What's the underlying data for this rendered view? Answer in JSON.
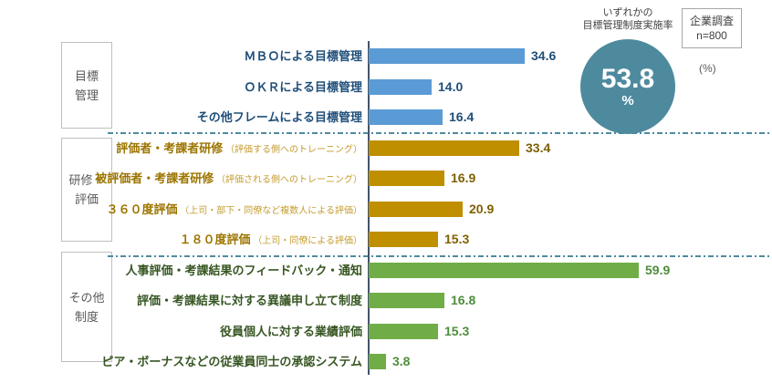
{
  "survey_box": {
    "text": "企業調査\nn=800"
  },
  "unit_label": "(%)",
  "highlight": {
    "title": "いずれかの\n目標管理制度実施率",
    "value": "53.8",
    "unit": "%",
    "circle_color": "#4E8A9E"
  },
  "categories": [
    {
      "label": "目標\n管理"
    },
    {
      "label": "研修・\n評価"
    },
    {
      "label": "その他\n制度"
    }
  ],
  "chart_data": {
    "type": "bar",
    "orientation": "horizontal",
    "unit": "%",
    "xlim": [
      0,
      65
    ],
    "axis_color": "#44546A",
    "separator_color": "#4E8A9E",
    "groups": [
      {
        "name": "目標管理",
        "bar_color": "#5B9BD5",
        "label_color": "#1F4E79",
        "note_color": "#1F4E79",
        "value_color": "#1F4E79",
        "items": [
          {
            "label": "ＭＢＯによる目標管理",
            "note": "",
            "value": 34.6
          },
          {
            "label": "ＯＫＲによる目標管理",
            "note": "",
            "value": 14.0
          },
          {
            "label": "その他フレームによる目標管理",
            "note": "",
            "value": 16.4
          }
        ]
      },
      {
        "name": "研修・評価",
        "bar_color": "#BF8F00",
        "label_color": "#9C7500",
        "note_color": "#C49C2E",
        "value_color": "#7F6000",
        "items": [
          {
            "label": "評価者・考課者研修",
            "note": "（評価する側へのトレーニング）",
            "value": 33.4
          },
          {
            "label": "被評価者・考課者研修",
            "note": "（評価される側へのトレーニング）",
            "value": 16.9
          },
          {
            "label": "３６０度評価",
            "note": "（上司・部下・同僚など複数人による評価）",
            "value": 20.9
          },
          {
            "label": "１８０度評価",
            "note": "（上司・同僚による評価）",
            "value": 15.3
          }
        ]
      },
      {
        "name": "その他制度",
        "bar_color": "#70AD47",
        "label_color": "#375623",
        "note_color": "#538135",
        "value_color": "#4F8D3C",
        "items": [
          {
            "label": "人事評価・考課結果のフィードバック・通知",
            "note": "",
            "value": 59.9
          },
          {
            "label": "評価・考課結果に対する異議申し立て制度",
            "note": "",
            "value": 16.8
          },
          {
            "label": "役員個人に対する業績評価",
            "note": "",
            "value": 15.3
          },
          {
            "label": "ピア・ボーナスなどの従業員同士の承認システム",
            "note": "",
            "value": 3.8
          }
        ]
      }
    ]
  }
}
